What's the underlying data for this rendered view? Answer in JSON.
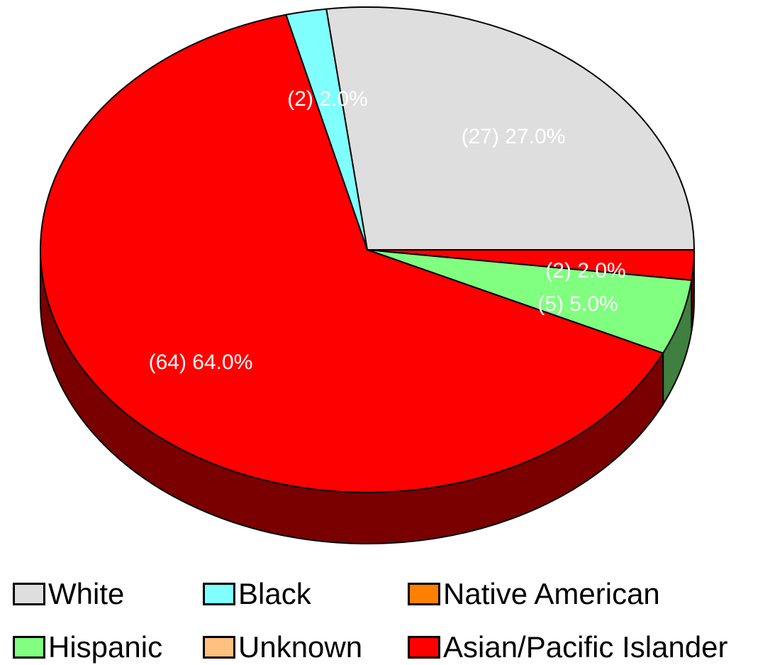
{
  "chart_data": {
    "type": "pie",
    "title": "",
    "slices": [
      {
        "name": "White",
        "count": 27,
        "percent": "27.0%",
        "label": "(27)  27.0%",
        "color": "#dedede",
        "side_color": "#9e9e9e"
      },
      {
        "name": "Asian/Pacific Islander",
        "count": 2,
        "percent": "2.0%",
        "label": "(2)  2.0%",
        "color": "#ff0000",
        "side_color": "#7a0000"
      },
      {
        "name": "Hispanic",
        "count": 5,
        "percent": "5.0%",
        "label": "(5)  5.0%",
        "color": "#80ff80",
        "side_color": "#3f7f3f"
      },
      {
        "name": "Asian/Pacific Islander",
        "count": 64,
        "percent": "64.0%",
        "label": "(64)  64.0%",
        "color": "#ff0000",
        "side_color": "#7a0000"
      },
      {
        "name": "Black",
        "count": 2,
        "percent": "2.0%",
        "label": "(2)  2.0%",
        "color": "#80ffff",
        "side_color": "#3f7f7f"
      }
    ],
    "legend": [
      {
        "label": "White",
        "color": "#dedede"
      },
      {
        "label": "Black",
        "color": "#80ffff"
      },
      {
        "label": "Native American",
        "color": "#ff8000"
      },
      {
        "label": "Hispanic",
        "color": "#80ff80"
      },
      {
        "label": "Unknown",
        "color": "#ffc080"
      },
      {
        "label": "Asian/Pacific Islander",
        "color": "#ff0000"
      }
    ],
    "legend_placement": "bottom"
  }
}
